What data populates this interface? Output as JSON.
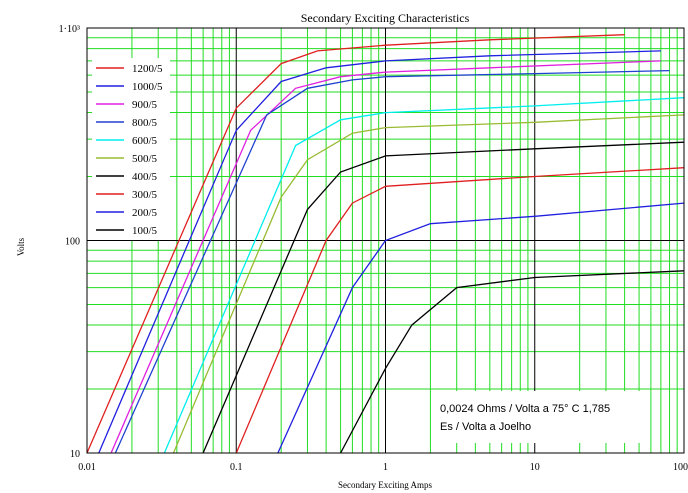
{
  "chart_data": {
    "type": "line",
    "title": "Secondary Exciting Characteristics",
    "xlabel": "Secondary Exciting Amps",
    "ylabel": "Volts",
    "xscale": "log",
    "yscale": "log",
    "xlim": [
      0.01,
      100
    ],
    "ylim": [
      10,
      1000
    ],
    "x_ticks": [
      {
        "value": 0.01,
        "label": "0.01"
      },
      {
        "value": 0.1,
        "label": "0.1"
      },
      {
        "value": 1,
        "label": "1"
      },
      {
        "value": 10,
        "label": "10"
      },
      {
        "value": 100,
        "label": "100"
      }
    ],
    "y_ticks": [
      {
        "value": 10,
        "label": "10"
      },
      {
        "value": 100,
        "label": "100"
      },
      {
        "value": 1000,
        "label": "1·10³"
      }
    ],
    "grid": true,
    "grid_color": "#22dd22",
    "major_grid_color": "#000000",
    "legend_position": "top-left",
    "annotation": {
      "line1": "0,0024 Ohms / Volta a 75° C 1,785",
      "line2": "Es / Volta a Joelho"
    },
    "series": [
      {
        "name": "1200/5",
        "color": "#e02020",
        "points": [
          [
            0.01,
            10
          ],
          [
            0.1,
            420
          ],
          [
            0.2,
            680
          ],
          [
            0.35,
            780
          ],
          [
            1,
            830
          ],
          [
            5,
            880
          ],
          [
            40,
            930
          ]
        ]
      },
      {
        "name": "1000/5",
        "color": "#2020e0",
        "points": [
          [
            0.012,
            10
          ],
          [
            0.1,
            330
          ],
          [
            0.2,
            560
          ],
          [
            0.4,
            650
          ],
          [
            1,
            700
          ],
          [
            5,
            740
          ],
          [
            70,
            780
          ]
        ]
      },
      {
        "name": "900/5",
        "color": "#e020e0",
        "points": [
          [
            0.0145,
            10
          ],
          [
            0.125,
            330
          ],
          [
            0.25,
            520
          ],
          [
            0.5,
            590
          ],
          [
            1,
            620
          ],
          [
            5,
            650
          ],
          [
            70,
            700
          ]
        ]
      },
      {
        "name": "800/5",
        "color": "#2040d0",
        "points": [
          [
            0.0155,
            10
          ],
          [
            0.16,
            390
          ],
          [
            0.3,
            520
          ],
          [
            0.6,
            570
          ],
          [
            1,
            590
          ],
          [
            10,
            610
          ],
          [
            80,
            630
          ]
        ]
      },
      {
        "name": "600/5",
        "color": "#00eeee",
        "points": [
          [
            0.033,
            10
          ],
          [
            0.25,
            280
          ],
          [
            0.5,
            370
          ],
          [
            1,
            400
          ],
          [
            10,
            430
          ],
          [
            100,
            470
          ]
        ]
      },
      {
        "name": "500/5",
        "color": "#99bb33",
        "points": [
          [
            0.038,
            10
          ],
          [
            0.2,
            160
          ],
          [
            0.3,
            240
          ],
          [
            0.6,
            320
          ],
          [
            1,
            340
          ],
          [
            10,
            360
          ],
          [
            100,
            390
          ]
        ]
      },
      {
        "name": "400/5",
        "color": "#000000",
        "points": [
          [
            0.06,
            10
          ],
          [
            0.3,
            140
          ],
          [
            0.5,
            210
          ],
          [
            1,
            250
          ],
          [
            10,
            270
          ],
          [
            100,
            290
          ]
        ]
      },
      {
        "name": "300/5",
        "color": "#e02020",
        "points": [
          [
            0.1,
            10
          ],
          [
            0.4,
            100
          ],
          [
            0.6,
            150
          ],
          [
            1,
            180
          ],
          [
            10,
            200
          ],
          [
            100,
            220
          ]
        ]
      },
      {
        "name": "200/5",
        "color": "#2020e0",
        "points": [
          [
            0.19,
            10
          ],
          [
            0.6,
            60
          ],
          [
            1,
            100
          ],
          [
            2,
            120
          ],
          [
            10,
            130
          ],
          [
            100,
            150
          ]
        ]
      },
      {
        "name": "100/5",
        "color": "#000000",
        "points": [
          [
            0.5,
            10
          ],
          [
            1,
            25
          ],
          [
            1.5,
            40
          ],
          [
            3,
            60
          ],
          [
            10,
            67
          ],
          [
            100,
            72
          ]
        ]
      }
    ]
  }
}
